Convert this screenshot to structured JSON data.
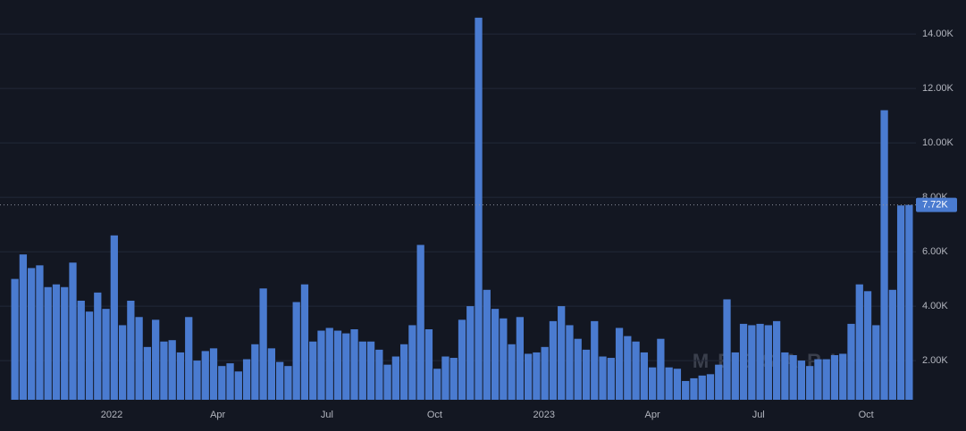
{
  "chart_data": {
    "type": "bar",
    "color": "#4a7bd0",
    "grid": true,
    "watermark": "MESSARI",
    "values": [
      5000,
      5900,
      5400,
      5500,
      4700,
      4800,
      4700,
      5600,
      4200,
      3800,
      4500,
      3900,
      6600,
      3300,
      4200,
      3600,
      2500,
      3500,
      2700,
      2750,
      2300,
      3600,
      2000,
      2350,
      2450,
      1800,
      1900,
      1600,
      2050,
      2600,
      4650,
      2450,
      1950,
      1800,
      4150,
      4800,
      2700,
      3100,
      3200,
      3100,
      3000,
      3150,
      2700,
      2700,
      2400,
      1850,
      2150,
      2600,
      3300,
      6250,
      3150,
      1700,
      2150,
      2100,
      3500,
      4000,
      14600,
      4600,
      3900,
      3550,
      2600,
      3600,
      2250,
      2300,
      2500,
      3450,
      4000,
      3300,
      2800,
      2400,
      3450,
      2150,
      2100,
      3200,
      2900,
      2700,
      2300,
      1750,
      2800,
      1750,
      1700,
      1250,
      1350,
      1450,
      1500,
      1850,
      4250,
      2300,
      3350,
      3300,
      3350,
      3300,
      3450,
      2300,
      2200,
      2000,
      1800,
      2050,
      2050,
      2200,
      2250,
      3350,
      4800,
      4550,
      3300,
      11200,
      4600,
      7700,
      7720
    ],
    "xlim": [
      0,
      109
    ],
    "xticks": [
      {
        "value": 12.2,
        "label": "2022"
      },
      {
        "value": 25.0,
        "label": "Apr"
      },
      {
        "value": 38.2,
        "label": "Jul"
      },
      {
        "value": 51.2,
        "label": "Oct"
      },
      {
        "value": 64.4,
        "label": "2023"
      },
      {
        "value": 77.5,
        "label": "Apr"
      },
      {
        "value": 90.3,
        "label": "Jul"
      },
      {
        "value": 103.3,
        "label": "Oct"
      }
    ],
    "ylim": [
      560,
      15250
    ],
    "yticks": [
      {
        "value": 2000,
        "label": "2.00K"
      },
      {
        "value": 4000,
        "label": "4.00K"
      },
      {
        "value": 6000,
        "label": "6.00K"
      },
      {
        "value": 8000,
        "label": "8.00K"
      },
      {
        "value": 10000,
        "label": "10.00K"
      },
      {
        "value": 12000,
        "label": "12.00K"
      },
      {
        "value": 14000,
        "label": "14.00K"
      }
    ],
    "last_value": {
      "value": 7720,
      "label": "7.72K"
    }
  }
}
